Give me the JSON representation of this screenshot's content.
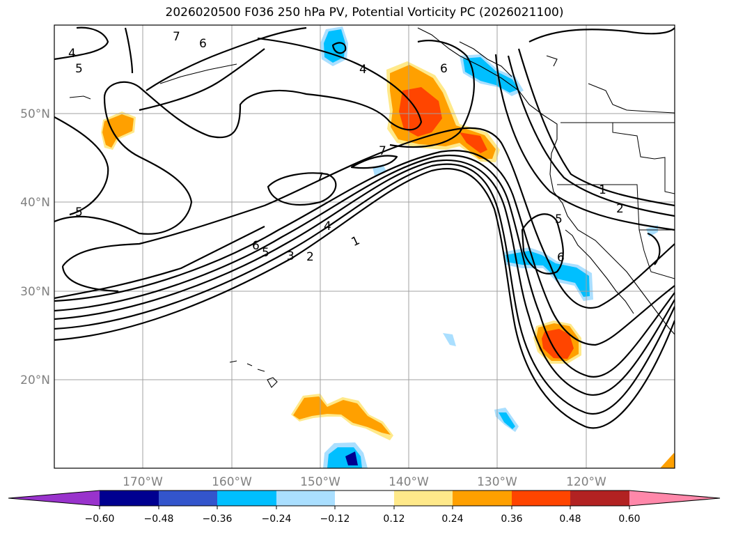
{
  "title": "2026020500 F036 250 hPa PV, Potential Vorticity PC (2026021100)",
  "latitude_labels": [
    "50°N",
    "40°N",
    "30°N",
    "20°N"
  ],
  "longitude_labels": [
    "170°W",
    "160°W",
    "150°W",
    "140°W",
    "130°W",
    "120°W"
  ],
  "colorbar": {
    "ticks": [
      "−0.60",
      "−0.48",
      "−0.36",
      "−0.24",
      "−0.12",
      "0.12",
      "0.24",
      "0.36",
      "0.48",
      "0.60"
    ],
    "colors": [
      "#9933cc",
      "#000090",
      "#3355cc",
      "#00bfff",
      "#aadfff",
      "#ffffff",
      "#ffe98a",
      "#ffa000",
      "#ff4500",
      "#b22222",
      "#ff88aa"
    ]
  },
  "chart_data": {
    "type": "contour-map",
    "field": "250 hPa PV (contours) with Potential Vorticity PC (shaded)",
    "contour_levels": [
      "1",
      "2",
      "3",
      "4",
      "5",
      "6",
      "7"
    ],
    "lon_range": [
      -180,
      -110
    ],
    "lat_range": [
      10,
      60
    ]
  }
}
